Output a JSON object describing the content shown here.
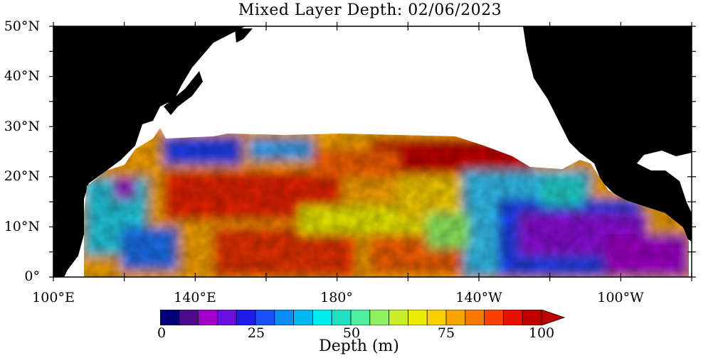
{
  "title": "Mixed Layer Depth: 02/06/2023",
  "lat_labels": [
    "50°N",
    "40°N",
    "30°N",
    "20°N",
    "10°N",
    "0°"
  ],
  "lon_labels": [
    "100°E",
    "140°E",
    "180°",
    "140°W",
    "100°W"
  ],
  "colorbar": {
    "label": "Depth (m)",
    "tick_labels": [
      "0",
      "25",
      "50",
      "75",
      "100"
    ],
    "colors": [
      "#00007a",
      "#4a0b8e",
      "#a000c8",
      "#6a0fdc",
      "#1e1ee8",
      "#1850f5",
      "#0a8cf5",
      "#00b8f0",
      "#00ecf0",
      "#20e0c0",
      "#4ef0a0",
      "#90f060",
      "#c8f02a",
      "#ecec00",
      "#f8d000",
      "#f8a400",
      "#f87800",
      "#f84000",
      "#e81000",
      "#c00000"
    ],
    "extend_max": true
  }
}
